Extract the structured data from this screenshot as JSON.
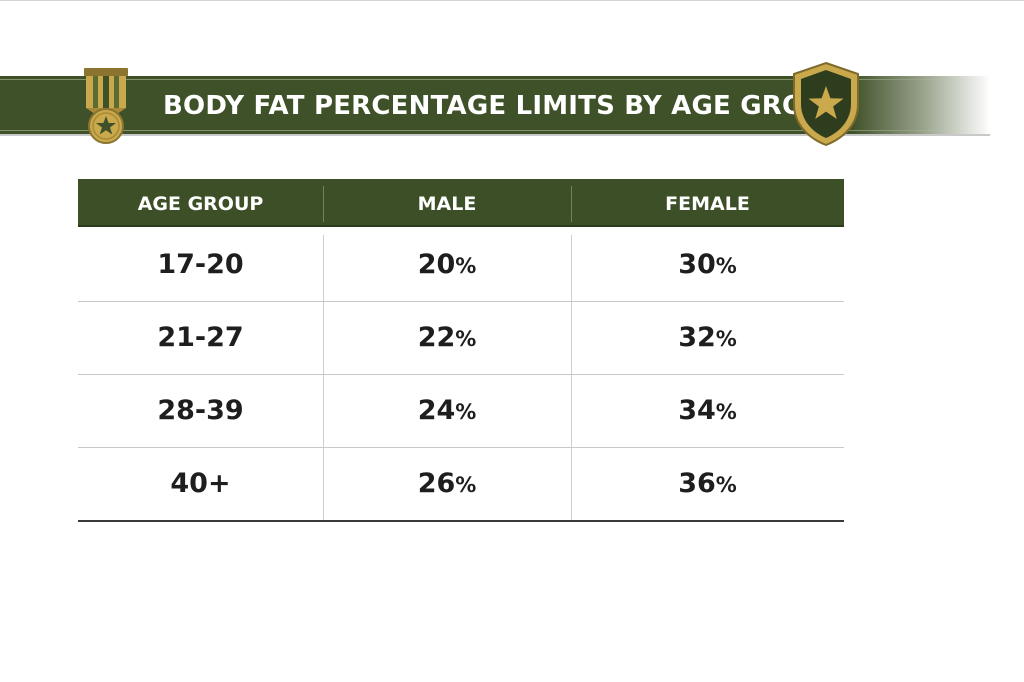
{
  "colors": {
    "banner": "#3f5128",
    "header": "#3d4f27",
    "gold": "#c9a94c",
    "text": "#1e1e1e"
  },
  "banner": {
    "title": "BODY FAT PERCENTAGE LIMITS BY AGE GROUP",
    "left_icon": "medal-icon",
    "right_icon": "shield-star-icon"
  },
  "chart_data": {
    "type": "table",
    "title": "BODY FAT PERCENTAGE LIMITS BY AGE GROUP",
    "columns": [
      "AGE GROUP",
      "MALE",
      "FEMALE"
    ],
    "unit": "%",
    "rows": [
      {
        "age_group": "17-20",
        "male": 20,
        "female": 30
      },
      {
        "age_group": "21-27",
        "male": 22,
        "female": 32
      },
      {
        "age_group": "28-39",
        "male": 24,
        "female": 34
      },
      {
        "age_group": "40+",
        "male": 26,
        "female": 36
      }
    ]
  }
}
